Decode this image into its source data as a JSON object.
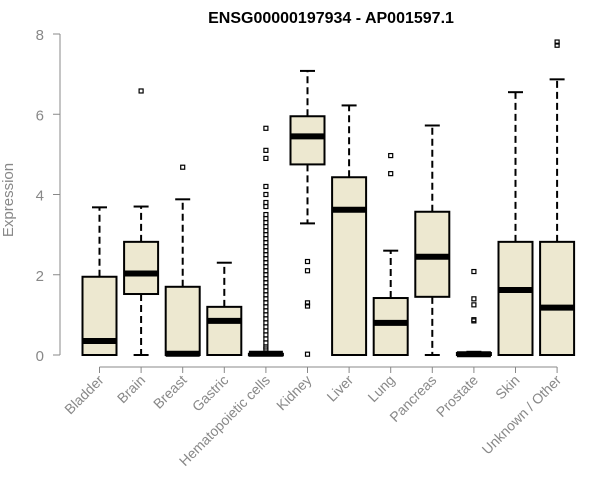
{
  "chart_data": {
    "type": "boxplot",
    "title": "ENSG00000197934 - AP001597.1",
    "xlabel": "",
    "ylabel": "Expression",
    "ylim": [
      0,
      8
    ],
    "yticks": [
      "0",
      "2",
      "4",
      "6",
      "8"
    ],
    "box_fill": "#ede8d0",
    "categories": [
      "Bladder",
      "Brain",
      "Breast",
      "Gastric",
      "Hematopoietic cells",
      "Kidney",
      "Liver",
      "Lung",
      "Pancreas",
      "Prostate",
      "Skin",
      "Unknown / Other"
    ],
    "boxes": [
      {
        "min": 0.0,
        "q1": 0.0,
        "median": 0.35,
        "q3": 1.95,
        "max": 3.68,
        "outliers": []
      },
      {
        "min": 0.0,
        "q1": 1.52,
        "median": 2.03,
        "q3": 2.82,
        "max": 3.7,
        "outliers": [
          6.58
        ]
      },
      {
        "min": 0.0,
        "q1": 0.0,
        "median": 0.03,
        "q3": 1.7,
        "max": 3.88,
        "outliers": [
          4.68
        ]
      },
      {
        "min": 0.0,
        "q1": 0.0,
        "median": 0.85,
        "q3": 1.2,
        "max": 2.3,
        "outliers": []
      },
      {
        "min": 0.0,
        "q1": 0.0,
        "median": 0.03,
        "q3": 0.03,
        "max": 0.05,
        "outliers": [
          5.65,
          5.1,
          4.9,
          4.2,
          4.0,
          3.8,
          3.7,
          3.5,
          3.4,
          3.3,
          3.2,
          3.1,
          3.0,
          2.9,
          2.8,
          2.7,
          2.6,
          2.5,
          2.4,
          2.3,
          2.2,
          2.1,
          2.0,
          1.9,
          1.8,
          1.7,
          1.6,
          1.5,
          1.4,
          1.3,
          1.2,
          1.1,
          1.0,
          0.9,
          0.8,
          0.7,
          0.6,
          0.5,
          0.4,
          0.3,
          0.2,
          0.15
        ]
      },
      {
        "min": 3.28,
        "q1": 4.75,
        "median": 5.45,
        "q3": 5.95,
        "max": 7.08,
        "outliers": [
          2.33,
          2.1,
          1.3,
          1.22,
          0.02
        ]
      },
      {
        "min": 0.0,
        "q1": 0.0,
        "median": 3.62,
        "q3": 4.43,
        "max": 6.22,
        "outliers": []
      },
      {
        "min": 0.0,
        "q1": 0.0,
        "median": 0.8,
        "q3": 1.42,
        "max": 2.6,
        "outliers": [
          4.97,
          4.52
        ]
      },
      {
        "min": 0.0,
        "q1": 1.45,
        "median": 2.45,
        "q3": 3.57,
        "max": 5.72,
        "outliers": []
      },
      {
        "min": 0.0,
        "q1": 0.0,
        "median": 0.02,
        "q3": 0.05,
        "max": 0.08,
        "outliers": [
          2.08,
          1.4,
          1.25,
          0.88,
          0.85
        ]
      },
      {
        "min": 0.0,
        "q1": 0.0,
        "median": 1.62,
        "q3": 2.82,
        "max": 6.55,
        "outliers": []
      },
      {
        "min": 0.0,
        "q1": 0.0,
        "median": 1.18,
        "q3": 2.82,
        "max": 6.87,
        "outliers": [
          7.8,
          7.72
        ]
      }
    ]
  }
}
